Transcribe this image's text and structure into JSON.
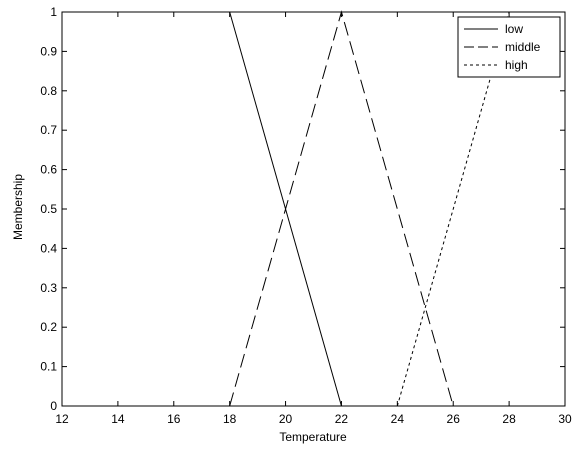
{
  "chart_data": {
    "type": "line",
    "title": "",
    "xlabel": "Temperature",
    "ylabel": "Membership",
    "xlim": [
      12,
      30
    ],
    "ylim": [
      0,
      1
    ],
    "xticks": [
      12,
      14,
      16,
      18,
      20,
      22,
      24,
      26,
      28,
      30
    ],
    "yticks": [
      0,
      0.1,
      0.2,
      0.3,
      0.4,
      0.5,
      0.6,
      0.7,
      0.8,
      0.9,
      1
    ],
    "xtick_labels": [
      "12",
      "14",
      "16",
      "18",
      "20",
      "22",
      "24",
      "26",
      "28",
      "30"
    ],
    "ytick_labels": [
      "0",
      "0.1",
      "0.2",
      "0.3",
      "0.4",
      "0.5",
      "0.6",
      "0.7",
      "0.8",
      "0.9",
      "1"
    ],
    "grid": false,
    "legend_position": "top-right",
    "series": [
      {
        "name": "low",
        "style": "solid",
        "color": "#000000",
        "x": [
          18,
          22
        ],
        "y": [
          1,
          0
        ]
      },
      {
        "name": "middle",
        "style": "dashed",
        "color": "#000000",
        "x": [
          18,
          22,
          26
        ],
        "y": [
          0,
          1,
          0
        ]
      },
      {
        "name": "high",
        "style": "dotted",
        "color": "#000000",
        "x": [
          24,
          28
        ],
        "y": [
          0,
          1
        ]
      }
    ]
  }
}
